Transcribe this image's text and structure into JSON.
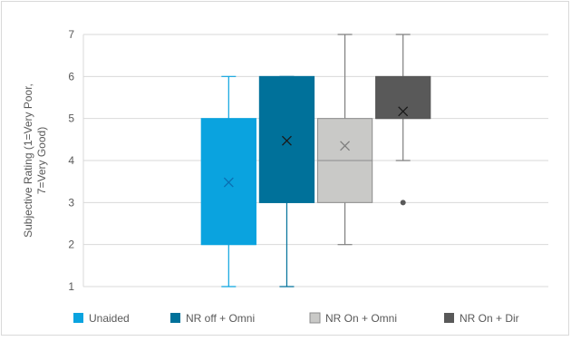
{
  "chart_data": {
    "type": "box",
    "ylabel_lines": [
      "Subjective Rating (1=Very Poor,",
      "7=Very Good)"
    ],
    "ylim": [
      1,
      7
    ],
    "yticks": [
      1,
      2,
      3,
      4,
      5,
      6,
      7
    ],
    "grid": true,
    "legend_position": "bottom",
    "series": [
      {
        "name": "Unaided",
        "color": "#0aa3df",
        "whisker_low": 1,
        "q1": 2,
        "median": 2,
        "q3": 5,
        "whisker_high": 6,
        "mean": 3.48,
        "outliers": []
      },
      {
        "name": "NR off + Omni",
        "color": "#00719a",
        "whisker_low": 1,
        "q1": 3,
        "median": 3,
        "q3": 6,
        "whisker_high": 6,
        "mean": 4.47,
        "outliers": []
      },
      {
        "name": "NR On + Omni",
        "color": "#c9c9c7",
        "whisker_low": 2,
        "q1": 3,
        "median": 4,
        "q3": 5,
        "whisker_high": 7,
        "mean": 4.35,
        "outliers": []
      },
      {
        "name": "NR On + Dir",
        "color": "#595959",
        "whisker_low": 4,
        "q1": 5,
        "median": 5,
        "q3": 6,
        "whisker_high": 7,
        "mean": 5.17,
        "outliers": [
          3
        ]
      }
    ]
  }
}
